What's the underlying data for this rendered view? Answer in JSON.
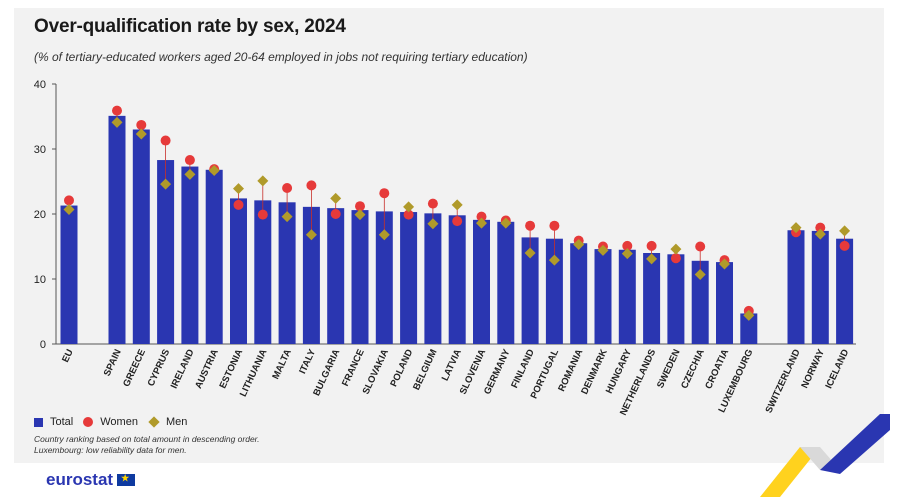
{
  "title": "Over-qualification rate by sex, 2024",
  "subtitle": "(% of tertiary-educated workers aged 20-64 employed in jobs not requiring tertiary education)",
  "legend": {
    "total": "Total",
    "women": "Women",
    "men": "Men"
  },
  "notes": [
    "Country ranking based on total amount in descending order.",
    "Luxembourg: low reliability data for men."
  ],
  "brand": "eurostat",
  "colors": {
    "total": "#2a36b1",
    "women": "#e63a3a",
    "men": "#b09a2a"
  },
  "chart_data": {
    "type": "bar",
    "categories": [
      "EU",
      "SPAIN",
      "GREECE",
      "CYPRUS",
      "IRELAND",
      "AUSTRIA",
      "ESTONIA",
      "LITHUANIA",
      "MALTA",
      "ITALY",
      "BULGARIA",
      "FRANCE",
      "SLOVAKIA",
      "POLAND",
      "BELGIUM",
      "LATVIA",
      "SLOVENIA",
      "GERMANY",
      "FINLAND",
      "PORTUGAL",
      "ROMANIA",
      "DENMARK",
      "HUNGARY",
      "NETHERLANDS",
      "SWEDEN",
      "CZECHIA",
      "CROATIA",
      "LUXEMBOURG",
      "SWITZERLAND",
      "NORWAY",
      "ICELAND"
    ],
    "series": [
      {
        "name": "Total",
        "kind": "bar",
        "values": [
          21.3,
          35.1,
          33.0,
          28.3,
          27.3,
          26.8,
          22.4,
          22.1,
          21.8,
          21.1,
          20.9,
          20.6,
          20.4,
          20.3,
          20.1,
          19.8,
          19.1,
          18.8,
          16.4,
          16.2,
          15.5,
          14.6,
          14.5,
          14.0,
          13.8,
          12.8,
          12.6,
          4.7,
          17.5,
          17.4,
          16.2
        ]
      },
      {
        "name": "Women",
        "kind": "dot",
        "values": [
          22.1,
          35.9,
          33.7,
          31.3,
          28.3,
          26.9,
          21.4,
          19.9,
          24.0,
          24.4,
          20.0,
          21.2,
          23.2,
          19.9,
          21.6,
          18.9,
          19.6,
          19.0,
          18.2,
          18.2,
          15.9,
          15.0,
          15.1,
          15.1,
          13.2,
          15.0,
          12.9,
          5.1,
          17.2,
          17.9,
          15.1
        ]
      },
      {
        "name": "Men",
        "kind": "diamond",
        "values": [
          20.7,
          34.1,
          32.3,
          24.6,
          26.1,
          26.7,
          23.9,
          25.1,
          19.6,
          16.8,
          22.4,
          19.9,
          16.8,
          21.1,
          18.5,
          21.4,
          18.6,
          18.6,
          14.0,
          12.9,
          15.3,
          14.4,
          13.9,
          13.1,
          14.6,
          10.7,
          12.3,
          4.4,
          17.9,
          16.9,
          17.4
        ]
      }
    ],
    "ylim": [
      0,
      40
    ],
    "yticks": [
      0,
      10,
      20,
      30,
      40
    ],
    "grid": false,
    "legend_position": "bottom-left"
  }
}
